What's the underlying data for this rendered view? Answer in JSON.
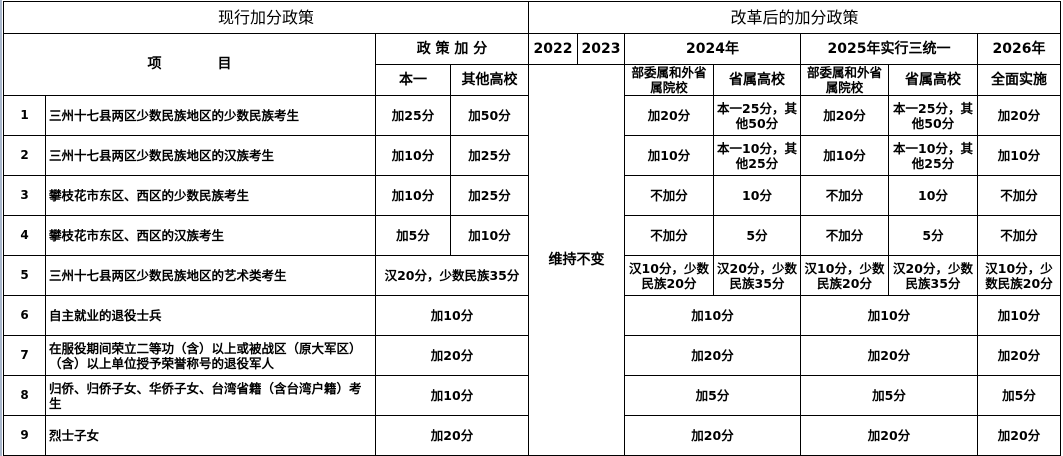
{
  "titles": {
    "current": "现行加分政策",
    "reform": "改革后的加分政策"
  },
  "headers": {
    "item": "项　　　　目",
    "policy_points": "政 策 加 分",
    "ben1": "本一",
    "other": "其他高校",
    "y2022": "2022",
    "y2023": "2023",
    "y2024": "2024年",
    "y2025": "2025年实行三统一",
    "y2026": "2026年",
    "ministry": "部委属和外省属院校",
    "provincial": "省属高校",
    "ministry2": "部委属和外省属院校",
    "provincial2": "省属高校",
    "full": "全面实施"
  },
  "unchanged": "维持不变",
  "rows": [
    {
      "num": "1",
      "item": "三州十七县两区少数民族地区的少数民族考生",
      "ben1": "加25分",
      "other": "加50分",
      "r24a": "加20分",
      "r24b": "本一25分，其他50分",
      "r25a": "加20分",
      "r25b": "本一25分，其他50分",
      "r26": "加20分"
    },
    {
      "num": "2",
      "item": "三州十七县两区少数民族地区的汉族考生",
      "ben1": "加10分",
      "other": "加25分",
      "r24a": "加10分",
      "r24b": "本一10分，其他25分",
      "r25a": "加10分",
      "r25b": "本一10分，其他25分",
      "r26": "加10分"
    },
    {
      "num": "3",
      "item": "攀枝花市东区、西区的少数民族考生",
      "ben1": "加10分",
      "other": "加25分",
      "r24a": "不加分",
      "r24b": "10分",
      "r25a": "不加分",
      "r25b": "10分",
      "r26": "不加分"
    },
    {
      "num": "4",
      "item": "攀枝花市东区、西区的汉族考生",
      "ben1": "加5分",
      "other": "加10分",
      "r24a": "不加分",
      "r24b": "5分",
      "r25a": "不加分",
      "r25b": "5分",
      "r26": "不加分"
    },
    {
      "num": "5",
      "item": "三州十七县两区少数民族地区的艺术类考生",
      "current": "汉20分，少数民族35分",
      "r24a": "汉10分，少数民族20分",
      "r24b": "汉20分，少数民族35分",
      "r25a": "汉10分，少数民族20分",
      "r25b": "汉20分，少数民族35分",
      "r26": "汉10分，少数民族20分"
    },
    {
      "num": "6",
      "item": "自主就业的退役士兵",
      "current": "加10分",
      "r24": "加10分",
      "r25": "加10分",
      "r26": "加10分"
    },
    {
      "num": "7",
      "item": "在服役期间荣立二等功（含）以上或被战区（原大军区）（含）以上单位授予荣誉称号的退役军人",
      "current": "加20分",
      "r24": "加20分",
      "r25": "加20分",
      "r26": "加20分"
    },
    {
      "num": "8",
      "item": "归侨、归侨子女、华侨子女、台湾省籍（含台湾户籍）考生",
      "current": "加10分",
      "r24": "加5分",
      "r25": "加5分",
      "r26": "加5分"
    },
    {
      "num": "9",
      "item": "烈士子女",
      "current": "加20分",
      "r24": "加20分",
      "r25": "加20分",
      "r26": "加20分"
    }
  ]
}
